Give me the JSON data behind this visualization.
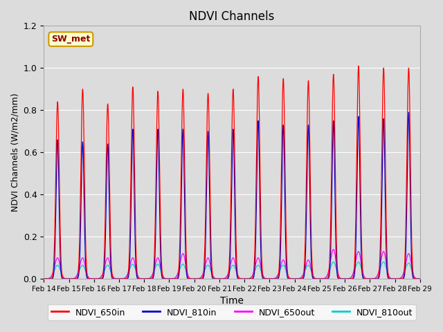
{
  "title": "NDVI Channels",
  "xlabel": "Time",
  "ylabel": "NDVI Channels (W/m2/mm)",
  "ylim": [
    0,
    1.2
  ],
  "background_color": "#dcdcdc",
  "legend_label": "SW_met",
  "xtick_labels": [
    "Feb 14",
    "Feb 15",
    "Feb 16",
    "Feb 17",
    "Feb 18",
    "Feb 19",
    "Feb 20",
    "Feb 21",
    "Feb 22",
    "Feb 23",
    "Feb 24",
    "Feb 25",
    "Feb 26",
    "Feb 27",
    "Feb 28",
    "Feb 29"
  ],
  "series_colors": {
    "NDVI_650in": "#ff0000",
    "NDVI_810in": "#0000cc",
    "NDVI_650out": "#ff00ff",
    "NDVI_810out": "#00cccc"
  },
  "peak_heights_650in": [
    0.84,
    0.9,
    0.83,
    0.91,
    0.89,
    0.9,
    0.88,
    0.9,
    0.96,
    0.95,
    0.94,
    0.97,
    1.01,
    1.0,
    1.0
  ],
  "peak_heights_810in": [
    0.66,
    0.65,
    0.64,
    0.71,
    0.71,
    0.71,
    0.7,
    0.71,
    0.75,
    0.73,
    0.73,
    0.75,
    0.77,
    0.76,
    0.79
  ],
  "peak_heights_650out": [
    0.1,
    0.1,
    0.1,
    0.1,
    0.1,
    0.12,
    0.1,
    0.1,
    0.1,
    0.09,
    0.09,
    0.14,
    0.13,
    0.13,
    0.12
  ],
  "peak_heights_810out": [
    0.065,
    0.065,
    0.065,
    0.07,
    0.07,
    0.07,
    0.065,
    0.065,
    0.065,
    0.065,
    0.065,
    0.08,
    0.08,
    0.08,
    0.075
  ]
}
